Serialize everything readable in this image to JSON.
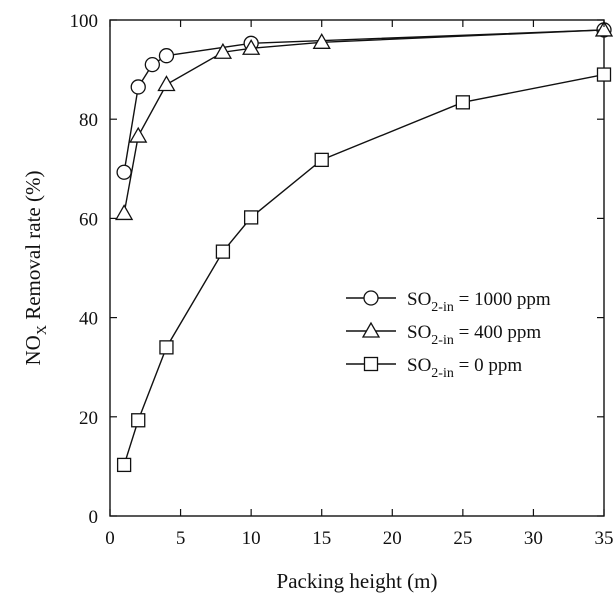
{
  "chart_data": {
    "type": "line",
    "xlabel": "Packing height (m)",
    "ylabel": {
      "main": "NO",
      "sub": "X",
      "rest": " Removal rate (%)"
    },
    "xlim": [
      0,
      35
    ],
    "ylim": [
      0,
      100
    ],
    "xticks": [
      0,
      5,
      10,
      15,
      20,
      25,
      30,
      35
    ],
    "yticks": [
      0,
      20,
      40,
      60,
      80,
      100
    ],
    "grid": false,
    "legend_position": "center-right",
    "series": [
      {
        "name": "SO2-in = 1000 ppm",
        "label_main": "SO",
        "label_sub": "2-in",
        "label_rest": " = 1000 ppm",
        "marker": "circle",
        "x": [
          1,
          2,
          3,
          4,
          10,
          35
        ],
        "y": [
          69.3,
          86.5,
          91,
          92.8,
          95.3,
          98
        ]
      },
      {
        "name": "SO2-in = 400 ppm",
        "label_main": "SO",
        "label_sub": "2-in",
        "label_rest": " = 400 ppm",
        "marker": "triangle",
        "x": [
          1,
          2,
          4,
          8,
          10,
          15,
          35
        ],
        "y": [
          61,
          76.6,
          87,
          93.5,
          94.3,
          95.5,
          98
        ]
      },
      {
        "name": "SO2-in = 0 ppm",
        "label_main": " SO",
        "label_sub": "2-in",
        "label_rest": " = 0 ppm",
        "marker": "square",
        "x": [
          1,
          2,
          4,
          8,
          10,
          15,
          25,
          35
        ],
        "y": [
          10.3,
          19.3,
          34,
          53.3,
          60.2,
          71.8,
          83.4,
          89
        ]
      }
    ],
    "colors": {
      "line": "#111111",
      "marker_fill": "#ffffff",
      "axis": "#111111"
    }
  }
}
